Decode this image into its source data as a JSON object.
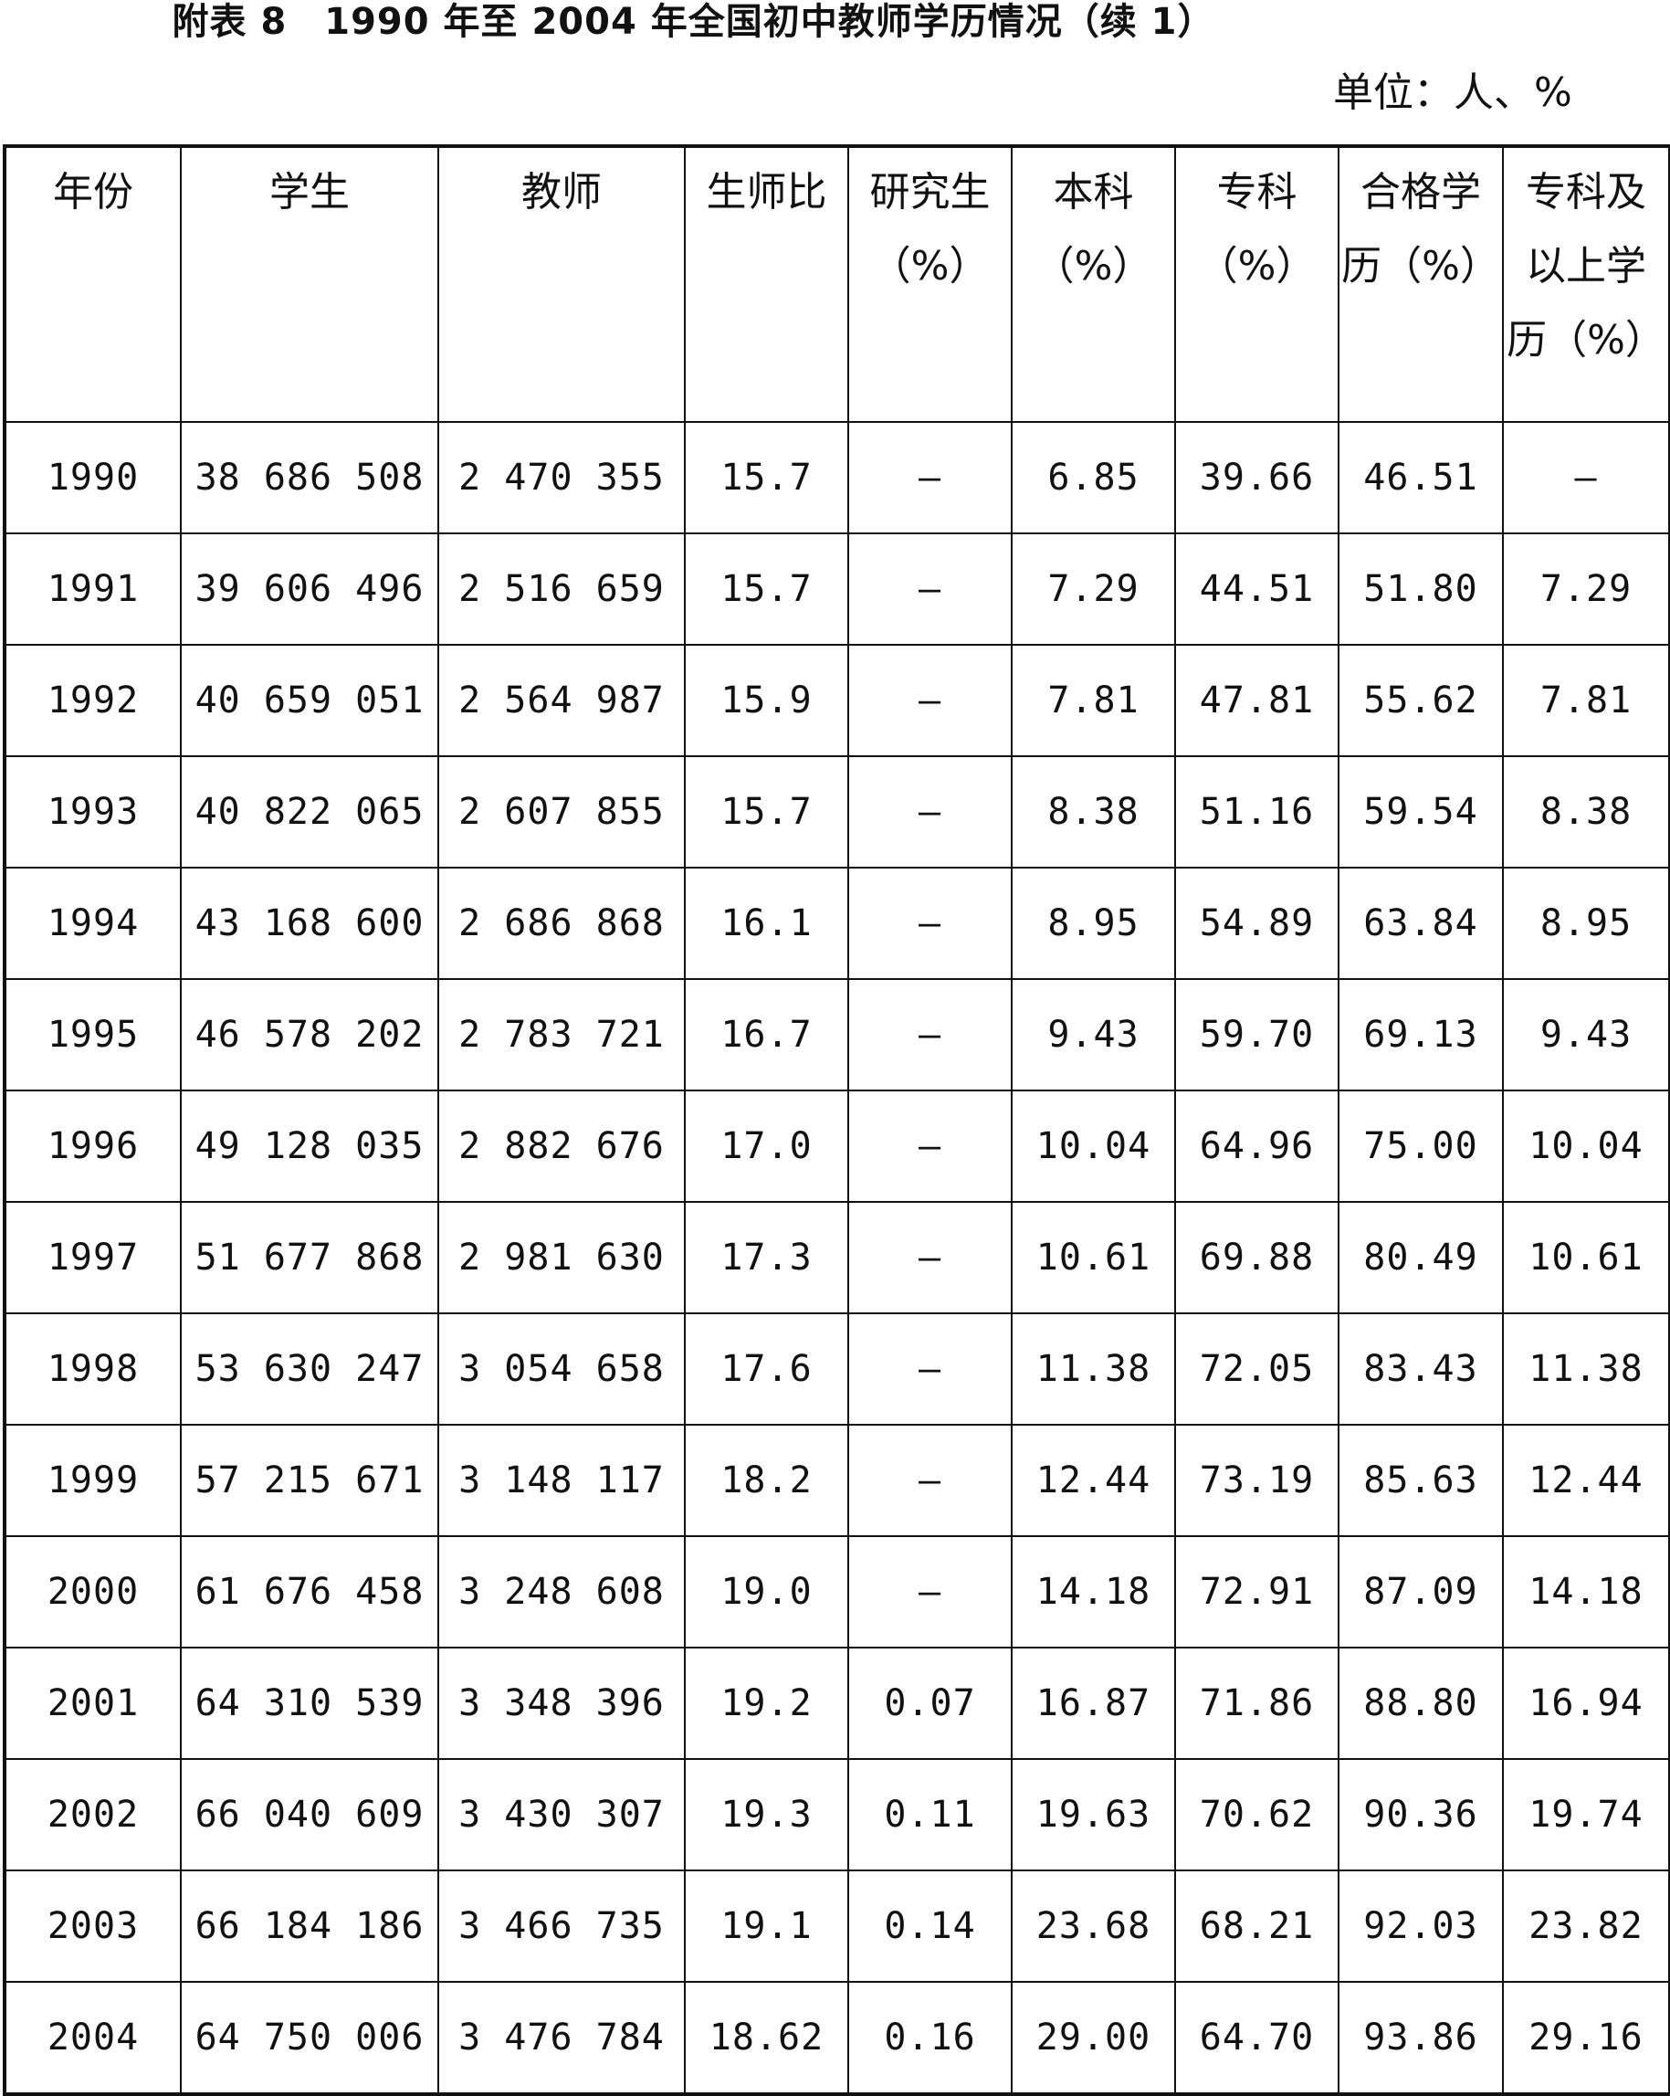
{
  "title": "附表 8　1990 年至 2004 年全国初中教师学历情况（续 1）",
  "unit": "单位：人、%",
  "headers": [
    [
      "年份"
    ],
    [
      "学生"
    ],
    [
      "教师"
    ],
    [
      "生师比"
    ],
    [
      "研究生",
      "（%）"
    ],
    [
      "本科",
      "（%）"
    ],
    [
      "专科",
      "（%）"
    ],
    [
      "合格学",
      "历（%）"
    ],
    [
      "专科及",
      "以上学",
      "历（%）"
    ]
  ],
  "rows": [
    [
      "1990",
      "38 686 508",
      "2 470 355",
      "15.7",
      "—",
      "6.85",
      "39.66",
      "46.51",
      "—"
    ],
    [
      "1991",
      "39 606 496",
      "2 516 659",
      "15.7",
      "—",
      "7.29",
      "44.51",
      "51.80",
      "7.29"
    ],
    [
      "1992",
      "40 659 051",
      "2 564 987",
      "15.9",
      "—",
      "7.81",
      "47.81",
      "55.62",
      "7.81"
    ],
    [
      "1993",
      "40 822 065",
      "2 607 855",
      "15.7",
      "—",
      "8.38",
      "51.16",
      "59.54",
      "8.38"
    ],
    [
      "1994",
      "43 168 600",
      "2 686 868",
      "16.1",
      "—",
      "8.95",
      "54.89",
      "63.84",
      "8.95"
    ],
    [
      "1995",
      "46 578 202",
      "2 783 721",
      "16.7",
      "—",
      "9.43",
      "59.70",
      "69.13",
      "9.43"
    ],
    [
      "1996",
      "49 128 035",
      "2 882 676",
      "17.0",
      "—",
      "10.04",
      "64.96",
      "75.00",
      "10.04"
    ],
    [
      "1997",
      "51 677 868",
      "2 981 630",
      "17.3",
      "—",
      "10.61",
      "69.88",
      "80.49",
      "10.61"
    ],
    [
      "1998",
      "53 630 247",
      "3 054 658",
      "17.6",
      "—",
      "11.38",
      "72.05",
      "83.43",
      "11.38"
    ],
    [
      "1999",
      "57 215 671",
      "3 148 117",
      "18.2",
      "—",
      "12.44",
      "73.19",
      "85.63",
      "12.44"
    ],
    [
      "2000",
      "61 676 458",
      "3 248 608",
      "19.0",
      "—",
      "14.18",
      "72.91",
      "87.09",
      "14.18"
    ],
    [
      "2001",
      "64 310 539",
      "3 348 396",
      "19.2",
      "0.07",
      "16.87",
      "71.86",
      "88.80",
      "16.94"
    ],
    [
      "2002",
      "66 040 609",
      "3 430 307",
      "19.3",
      "0.11",
      "19.63",
      "70.62",
      "90.36",
      "19.74"
    ],
    [
      "2003",
      "66 184 186",
      "3 466 735",
      "19.1",
      "0.14",
      "23.68",
      "68.21",
      "92.03",
      "23.82"
    ],
    [
      "2004",
      "64 750 006",
      "3 476 784",
      "18.62",
      "0.16",
      "29.00",
      "64.70",
      "93.86",
      "29.16"
    ]
  ]
}
